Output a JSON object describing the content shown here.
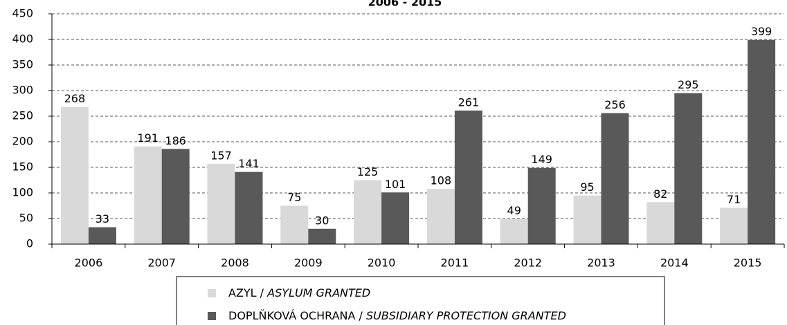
{
  "chart_data": {
    "type": "bar",
    "title": "2006 - 2015",
    "categories": [
      "2006",
      "2007",
      "2008",
      "2009",
      "2010",
      "2011",
      "2012",
      "2013",
      "2014",
      "2015"
    ],
    "series": [
      {
        "name": "AZYL / ASYLUM GRANTED",
        "color": "#d9d9d9",
        "values": [
          268,
          191,
          157,
          75,
          125,
          108,
          49,
          95,
          82,
          71
        ]
      },
      {
        "name": "DOPLŇKOVÁ OCHRANA / SUBSIDIARY PROTECTION GRANTED",
        "color": "#595959",
        "values": [
          33,
          186,
          141,
          30,
          101,
          261,
          149,
          256,
          295,
          399
        ]
      }
    ],
    "ylim": [
      0,
      450
    ],
    "yticks": [
      0,
      50,
      100,
      150,
      200,
      250,
      300,
      350,
      400,
      450
    ],
    "grid": true
  }
}
